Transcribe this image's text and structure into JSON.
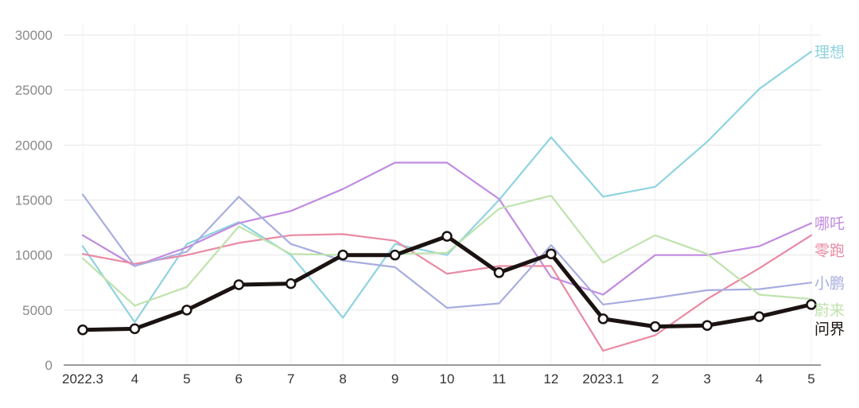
{
  "chart_data": {
    "type": "line",
    "title": "",
    "xlabel": "",
    "ylabel": "",
    "ylim": [
      0,
      30000
    ],
    "yticks": [
      0,
      5000,
      10000,
      15000,
      20000,
      25000,
      30000
    ],
    "grid": true,
    "legend": "end-of-line labels on right",
    "categories": [
      "2022.3",
      "4",
      "5",
      "6",
      "7",
      "8",
      "9",
      "10",
      "11",
      "12",
      "2023.1",
      "2",
      "3",
      "4",
      "5"
    ],
    "series": [
      {
        "name": "理想",
        "color": "#8fd3e0",
        "emphasis": false,
        "values": [
          10800,
          3900,
          11000,
          13000,
          10000,
          4300,
          11000,
          10000,
          15000,
          20700,
          15300,
          16200,
          20300,
          25100,
          28500
        ]
      },
      {
        "name": "哪吒",
        "color": "#c18be0",
        "emphasis": false,
        "values": [
          11800,
          9000,
          10700,
          12900,
          14000,
          16000,
          18400,
          18400,
          15100,
          8000,
          6400,
          10000,
          10000,
          10800,
          12900
        ]
      },
      {
        "name": "零跑",
        "color": "#e98aa4",
        "emphasis": false,
        "values": [
          10100,
          9200,
          10000,
          11100,
          11800,
          11900,
          11300,
          8300,
          9000,
          9000,
          1300,
          2700,
          6000,
          8800,
          11800
        ]
      },
      {
        "name": "小鹏",
        "color": "#a8addf",
        "emphasis": false,
        "values": [
          15500,
          9000,
          10300,
          15300,
          11000,
          9500,
          8900,
          5200,
          5600,
          10900,
          5500,
          6100,
          6800,
          6900,
          7500
        ]
      },
      {
        "name": "蔚来",
        "color": "#bfe3ad",
        "emphasis": false,
        "values": [
          9700,
          5400,
          7100,
          12600,
          10100,
          10000,
          10100,
          10200,
          14200,
          15400,
          9300,
          11800,
          10100,
          6400,
          6000
        ]
      },
      {
        "name": "问界",
        "color": "#1a1311",
        "emphasis": true,
        "values": [
          3200,
          3300,
          5000,
          7300,
          7400,
          10000,
          10000,
          11700,
          8400,
          10100,
          4200,
          3500,
          3600,
          4400,
          5500
        ]
      }
    ]
  }
}
